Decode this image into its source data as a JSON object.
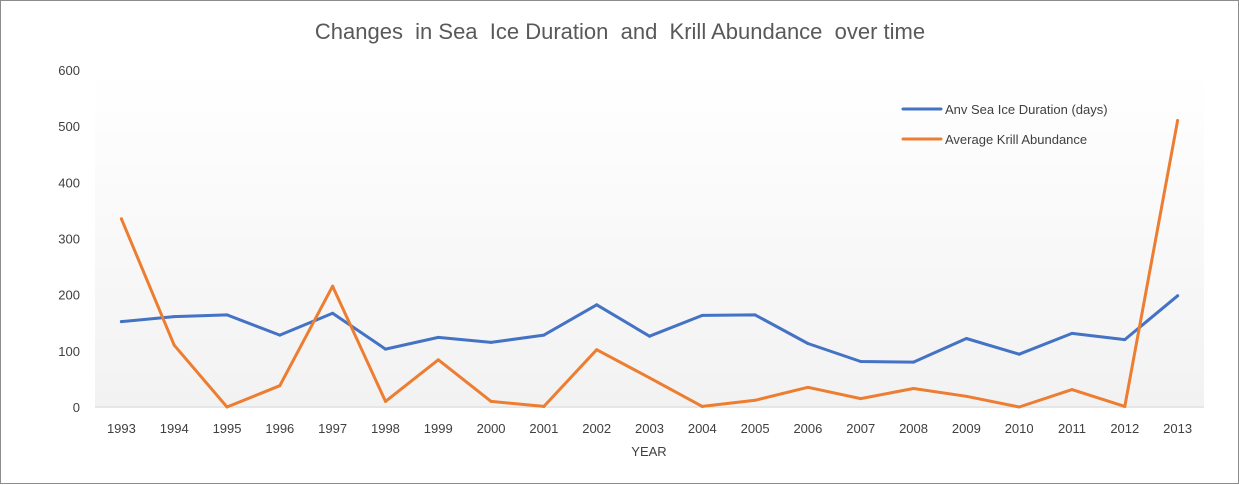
{
  "chart_data": {
    "type": "line",
    "title": "Changes  in Sea  Ice Duration  and  Krill Abundance  over time",
    "xlabel": "YEAR",
    "ylabel": "",
    "categories": [
      "1993",
      "1994",
      "1995",
      "1996",
      "1997",
      "1998",
      "1999",
      "2000",
      "2001",
      "2002",
      "2003",
      "2004",
      "2005",
      "2006",
      "2007",
      "2008",
      "2009",
      "2010",
      "2011",
      "2012",
      "2013"
    ],
    "y_ticks": [
      "0",
      "100",
      "200",
      "300",
      "400",
      "500",
      "600"
    ],
    "ylim": [
      0,
      600
    ],
    "grid": false,
    "legend_position": "top-right",
    "series": [
      {
        "name": "Anv Sea Ice Duration (days)",
        "color": "#4472c4",
        "values": [
          152,
          161,
          164,
          128,
          167,
          103,
          124,
          115,
          128,
          182,
          126,
          163,
          164,
          113,
          81,
          80,
          122,
          94,
          131,
          120,
          198
        ]
      },
      {
        "name": "Average Krill Abundance",
        "color": "#ed7d31",
        "values": [
          335,
          110,
          0,
          38,
          215,
          10,
          84,
          10,
          1,
          102,
          52,
          1,
          12,
          35,
          15,
          33,
          19,
          0,
          31,
          1,
          510
        ]
      }
    ]
  }
}
